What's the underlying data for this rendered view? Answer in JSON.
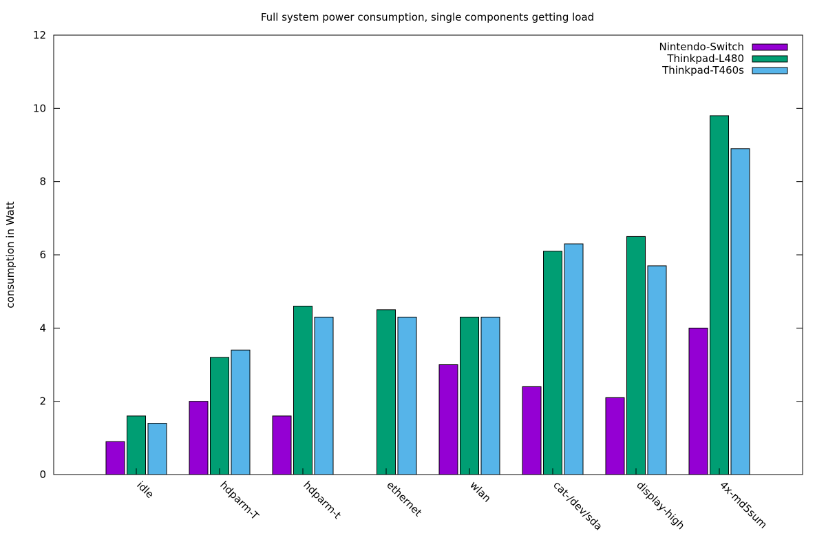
{
  "chart_data": {
    "type": "bar",
    "title": "Full system power consumption, single components getting load",
    "xlabel": "",
    "ylabel": "consumption in Watt",
    "ylim": [
      0,
      12
    ],
    "yticks": [
      0,
      2,
      4,
      6,
      8,
      10,
      12
    ],
    "grid": false,
    "legend_position": "top-right",
    "categories": [
      "idle",
      "hdparm-T",
      "hdparm-t",
      "ethernet",
      "wlan",
      "cat-/dev/sda",
      "display-high",
      "4x-md5sum"
    ],
    "series": [
      {
        "name": "Nintendo-Switch",
        "color": "#9400d3",
        "values": [
          0.9,
          2.0,
          1.6,
          null,
          3.0,
          2.4,
          2.1,
          4.0
        ]
      },
      {
        "name": "Thinkpad-L480",
        "color": "#009e73",
        "values": [
          1.6,
          3.2,
          4.6,
          4.5,
          4.3,
          6.1,
          6.5,
          9.8
        ]
      },
      {
        "name": "Thinkpad-T460s",
        "color": "#56b4e9",
        "values": [
          1.4,
          3.4,
          4.3,
          4.3,
          4.3,
          6.3,
          5.7,
          8.9
        ]
      }
    ]
  }
}
